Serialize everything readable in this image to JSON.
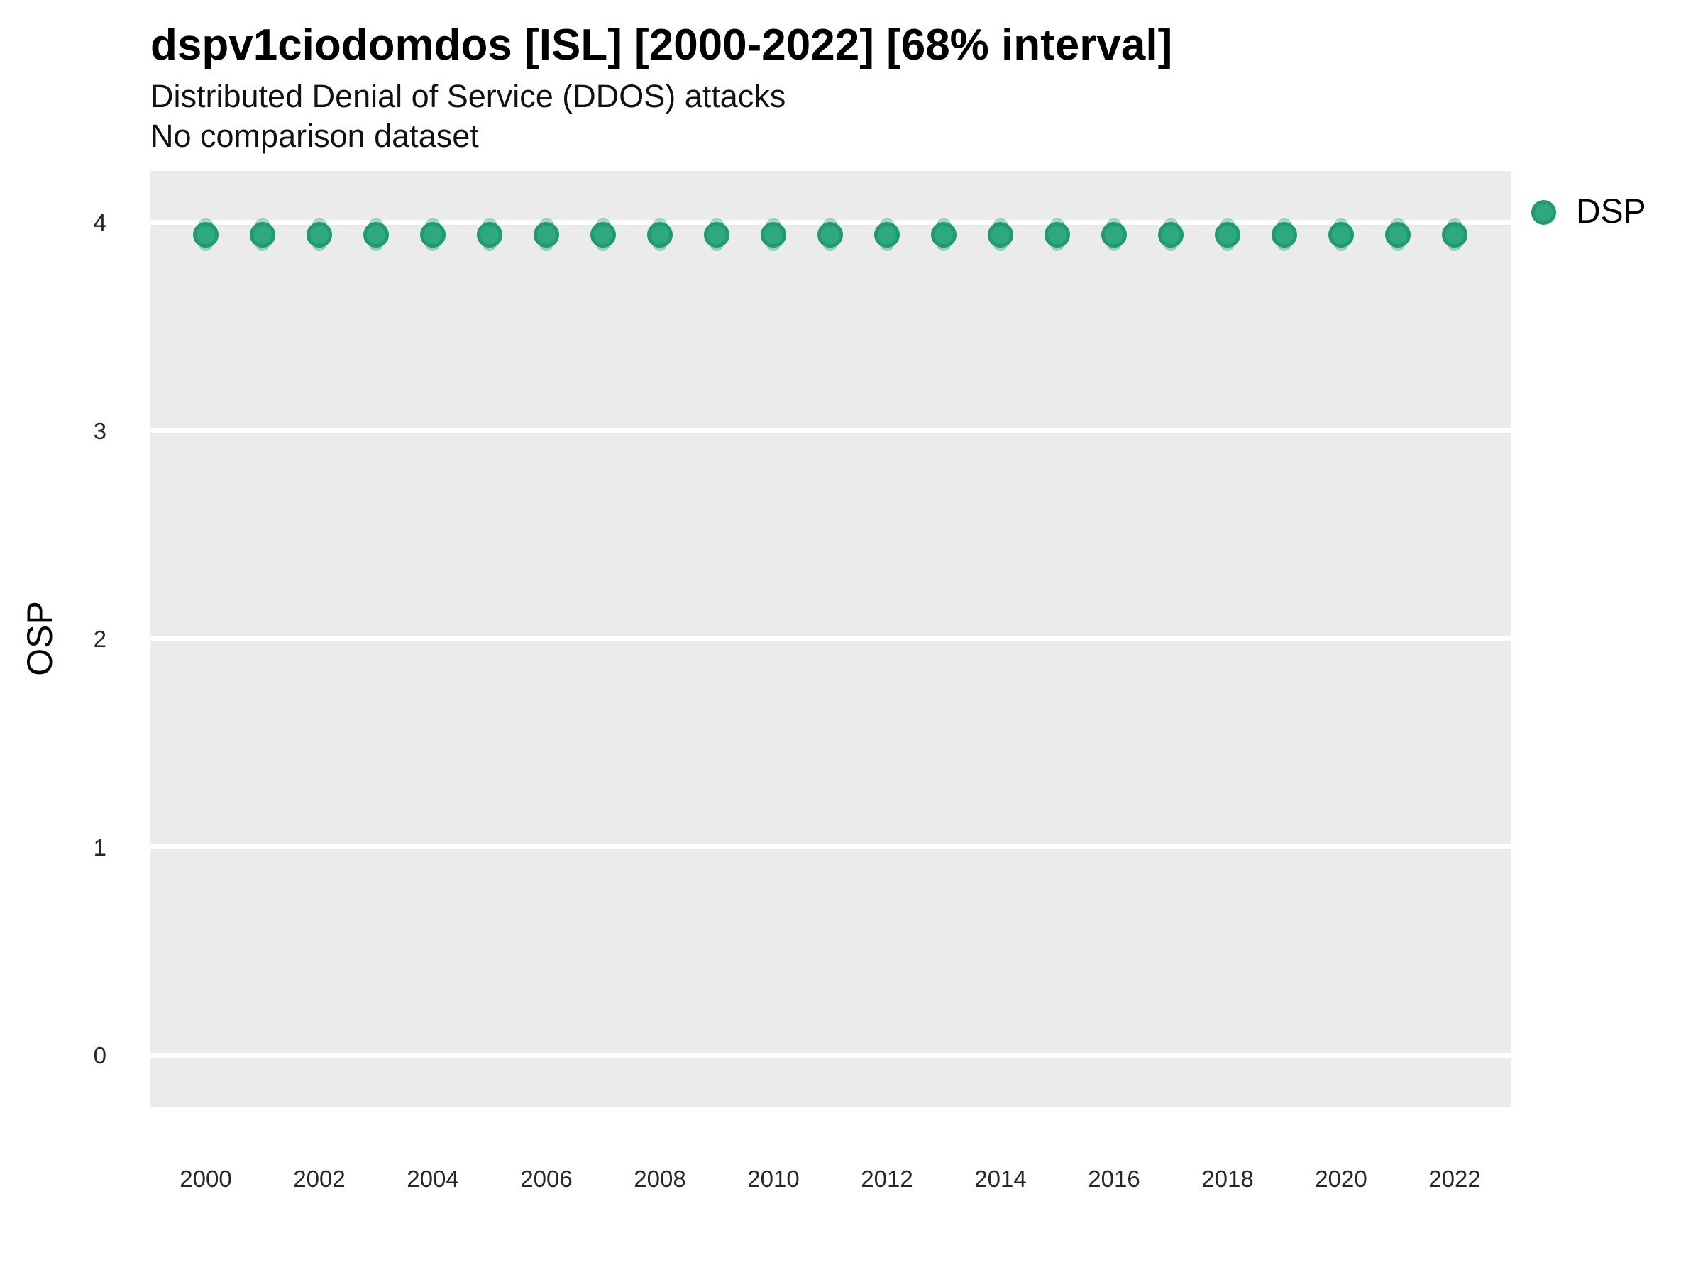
{
  "chart_data": {
    "type": "scatter",
    "title": "dspv1ciodomdos [ISL] [2000-2022] [68% interval]",
    "subtitle": "Distributed Denial of Service (DDOS) attacks",
    "note": "No comparison dataset",
    "xlabel": "",
    "ylabel": "OSP",
    "interval": "68%",
    "grid": "horizontal-major-only",
    "legend_position": "right",
    "legend": [
      {
        "label": "DSP",
        "color": "#2EA97D"
      }
    ],
    "x": [
      2000,
      2001,
      2002,
      2003,
      2004,
      2005,
      2006,
      2007,
      2008,
      2009,
      2010,
      2011,
      2012,
      2013,
      2014,
      2015,
      2016,
      2017,
      2018,
      2019,
      2020,
      2021,
      2022
    ],
    "series": [
      {
        "name": "DSP",
        "values": [
          3.94,
          3.94,
          3.94,
          3.94,
          3.94,
          3.94,
          3.94,
          3.94,
          3.94,
          3.94,
          3.94,
          3.94,
          3.94,
          3.94,
          3.94,
          3.94,
          3.94,
          3.94,
          3.94,
          3.94,
          3.94,
          3.94,
          3.94
        ],
        "interval_low": [
          3.86,
          3.86,
          3.86,
          3.86,
          3.86,
          3.86,
          3.86,
          3.86,
          3.86,
          3.86,
          3.86,
          3.86,
          3.86,
          3.86,
          3.86,
          3.86,
          3.86,
          3.86,
          3.86,
          3.86,
          3.86,
          3.86,
          3.86
        ],
        "interval_high": [
          4.02,
          4.02,
          4.02,
          4.02,
          4.02,
          4.02,
          4.02,
          4.02,
          4.02,
          4.02,
          4.02,
          4.02,
          4.02,
          4.02,
          4.02,
          4.02,
          4.02,
          4.02,
          4.02,
          4.02,
          4.02,
          4.02,
          4.02
        ]
      }
    ],
    "ylim": [
      -0.25,
      4.27
    ],
    "y_ticks": [
      0,
      1,
      2,
      3,
      4
    ],
    "x_ticks": [
      2000,
      2002,
      2004,
      2006,
      2008,
      2010,
      2012,
      2014,
      2016,
      2018,
      2020,
      2022
    ],
    "colors": {
      "point_fill": "#2EA97D",
      "point_ring": "#1F9C6F",
      "interval_bar": "rgba(43,168,123,0.42)",
      "panel_background": "#EBEBEB",
      "gridline": "#FFFFFF"
    }
  }
}
